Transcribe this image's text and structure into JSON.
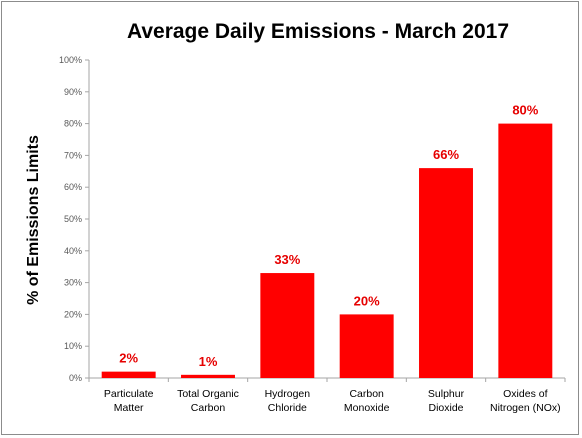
{
  "chart_data": {
    "type": "bar",
    "title": "Average Daily Emissions  - March 2017",
    "xlabel": "",
    "ylabel": "% of Emissions Limits",
    "ylim": [
      0,
      100
    ],
    "yticks": [
      "0%",
      "10%",
      "20%",
      "30%",
      "40%",
      "50%",
      "60%",
      "70%",
      "80%",
      "90%",
      "100%"
    ],
    "categories": [
      [
        "Particulate",
        "Matter"
      ],
      [
        "Total Organic",
        "Carbon"
      ],
      [
        "Hydrogen",
        "Chloride"
      ],
      [
        "Carbon",
        "Monoxide"
      ],
      [
        "Sulphur",
        "Dioxide"
      ],
      [
        "Oxides of",
        "Nitrogen (NOx)"
      ]
    ],
    "values": [
      2,
      1,
      33,
      20,
      66,
      80
    ],
    "data_labels": [
      "2%",
      "1%",
      "33%",
      "20%",
      "66%",
      "80%"
    ],
    "bar_color": "#ff0000",
    "label_color": "#e60000",
    "grid": false,
    "legend": "none"
  }
}
